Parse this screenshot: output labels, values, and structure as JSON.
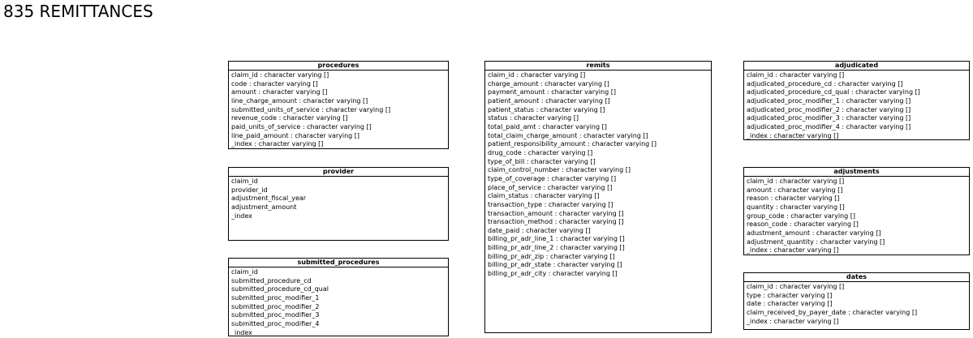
{
  "page": {
    "title": "835 REMITTANCES"
  },
  "tables": [
    {
      "name": "procedures",
      "rows": [
        "claim_id : character varying []",
        "code : character varying []",
        "amount : character varying []",
        "line_charge_amount : character varying []",
        "submitted_units_of_service : character varying []",
        "revenue_code : character varying []",
        "paid_units_of_service : character varying []",
        "line_paid_amount : character varying []",
        "_index : character varying []"
      ]
    },
    {
      "name": "provider",
      "rows": [
        "claim_id",
        "provider_id",
        "adjustment_fiscal_year",
        "adjustment_amount",
        "_index"
      ]
    },
    {
      "name": "submitted_procedures",
      "rows": [
        "claim_id",
        "submitted_procedure_cd",
        "submitted_procedure_cd_qual",
        "submitted_proc_modifier_1",
        "submitted_proc_modifier_2",
        "submitted_proc_modifier_3",
        "submitted_proc_modifier_4",
        "_index"
      ]
    },
    {
      "name": "remits",
      "rows": [
        "claim_id : character varying []",
        "charge_amount : character varying []",
        "payment_amount : character varying []",
        "patient_amount : character varying []",
        "patient_status : character varying []",
        "status : character varying []",
        "total_paid_amt : character varying []",
        "total_claim_charge_amount : character varying []",
        "patient_responsibility_amount : character varying []",
        "drug_code : character varying []",
        "type_of_bill : character varying []",
        "claim_control_number : character varying []",
        "type_of_coverage : character varying []",
        "place_of_service : character varying []",
        "claim_status : character varying []",
        "transaction_type : character varying []",
        "transaction_amount : character varying []",
        "transaction_method : character varying []",
        "date_paid : character varying []",
        "billing_pr_adr_line_1 : character varying []",
        "billing_pr_adr_line_2 : character varying []",
        "billing_pr_adr_zip : character varying []",
        "billing_pr_adr_state : character varying []",
        "billing_pr_adr_city : character varying []"
      ]
    },
    {
      "name": "adjudicated",
      "rows": [
        "claim_id : character varying []",
        "adjudicated_procedure_cd : character varying []",
        "adjudicated_procedure_cd_qual : character varying []",
        "adjudicated_proc_modifier_1 : character varying []",
        "adjudicated_proc_modifier_2 : character varying []",
        "adjudicated_proc_modifier_3 : character varying []",
        "adjudicated_proc_modifier_4 : character varying []",
        "_index : character varying []"
      ]
    },
    {
      "name": "adjustments",
      "rows": [
        "claim_id : character varying []",
        "amount : character varying []",
        "reason : character varying []",
        "quantity : character varying []",
        "group_code : character varying []",
        "reason_code : character varying []",
        "adustment_amount : character varying []",
        "adjustment_quantity : character varying []",
        "_index : character varying []"
      ]
    },
    {
      "name": "dates",
      "rows": [
        "claim_id : character varying []",
        "type : character varying []",
        "date : character varying []",
        "claim_received_by_payer_date : character varying []",
        "_index : character varying []"
      ]
    }
  ]
}
